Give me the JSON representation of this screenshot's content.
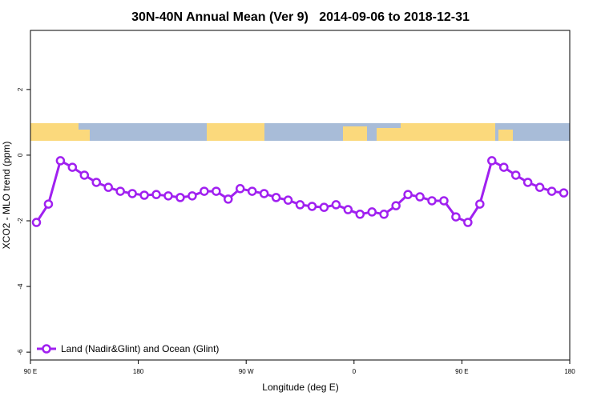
{
  "chart_data": {
    "type": "line",
    "title": "30N-40N Annual Mean (Ver 9)   2014-09-06 to 2018-12-31",
    "x_label": "Longitude (deg E)",
    "y_label": "XCO2 - MLO trend (ppm)",
    "x": [
      95,
      105,
      115,
      125,
      135,
      145,
      155,
      165,
      175,
      185,
      195,
      205,
      215,
      225,
      235,
      245,
      255,
      265,
      275,
      285,
      295,
      305,
      315,
      325,
      335,
      345,
      355,
      365,
      375,
      385,
      395,
      405,
      415,
      425,
      435,
      445,
      455,
      465,
      475,
      485,
      495,
      505,
      515,
      525,
      535
    ],
    "series": [
      {
        "name": "Land (Nadir&Glint) and Ocean (Glint)",
        "color": "#a020f0",
        "values": [
          -2.05,
          -1.49,
          -0.17,
          -0.37,
          -0.61,
          -0.83,
          -0.98,
          -1.1,
          -1.17,
          -1.22,
          -1.2,
          -1.24,
          -1.29,
          -1.24,
          -1.1,
          -1.1,
          -1.34,
          -1.02,
          -1.1,
          -1.17,
          -1.29,
          -1.37,
          -1.51,
          -1.56,
          -1.59,
          -1.51,
          -1.66,
          -1.8,
          -1.73,
          -1.8,
          -1.54,
          -1.2,
          -1.27,
          -1.39,
          -1.39,
          -1.88,
          -2.05,
          -1.49,
          -0.17,
          -0.37,
          -0.61,
          -0.83,
          -0.98,
          -1.1,
          -1.15
        ]
      }
    ],
    "xlim": [
      90,
      540
    ],
    "xticks": [
      {
        "value": 90,
        "label": "90 E"
      },
      180,
      {
        "value": 270,
        "label": "90 W"
      },
      {
        "value": 360,
        "label": "0"
      },
      {
        "value": 450,
        "label": "90 E"
      },
      {
        "value": 540,
        "label": "180"
      }
    ],
    "ylim": [
      -6.24,
      3.8
    ],
    "yticks": [
      -6,
      -4,
      -2,
      0,
      2
    ],
    "legend": "lower left"
  }
}
